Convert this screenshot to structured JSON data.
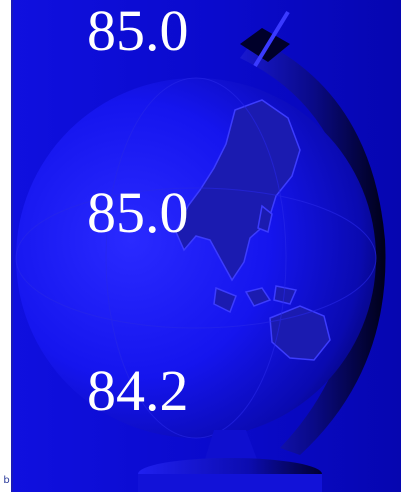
{
  "slide": {
    "values": [
      "85.0",
      "85.0",
      "84.2"
    ],
    "corner_mark": "b",
    "colors": {
      "background": "#0c0cd2",
      "globe_light": "#2222ff",
      "globe_dark": "#000033",
      "land": "#1a1aa8",
      "text": "#ffffff",
      "left_strip": "#ffffff"
    },
    "background_icon": "globe-on-stand-icon"
  }
}
